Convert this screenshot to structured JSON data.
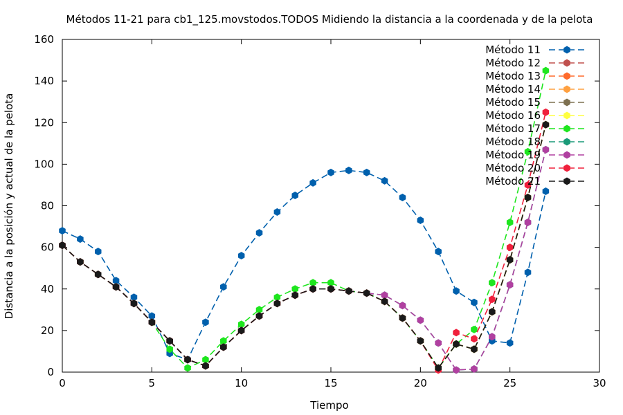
{
  "chart_data": {
    "type": "line",
    "title": "Métodos 11-21 para cb1_125.movstodos.TODOS Midiendo la distancia a la coordenada y de la pelota",
    "xlabel": "Tiempo",
    "ylabel": "Distancia a la posición y actual de la pelota",
    "xlim": [
      0,
      30
    ],
    "ylim": [
      0,
      160
    ],
    "xticks": [
      "0",
      "5",
      "10",
      "15",
      "20",
      "25",
      "30"
    ],
    "yticks": [
      "0",
      "20",
      "40",
      "60",
      "80",
      "100",
      "120",
      "140",
      "160"
    ],
    "grid": false,
    "legend_position": "top-right",
    "series": [
      {
        "name": "Método 11",
        "color": "#0060ad",
        "x": [
          0,
          1,
          2,
          3,
          4,
          5,
          6,
          7,
          8,
          9,
          10,
          11,
          12,
          13,
          14,
          15,
          16,
          17,
          18,
          19,
          20,
          21,
          22,
          23,
          24,
          25,
          26,
          27
        ],
        "y": [
          68,
          64,
          58,
          44,
          36,
          27,
          9,
          6,
          24,
          41,
          56,
          67,
          77,
          85,
          91,
          96,
          97,
          96,
          92,
          84,
          73,
          58,
          39,
          33.5,
          15,
          14,
          48,
          87
        ]
      },
      {
        "name": "Método 12",
        "color": "#c0504d",
        "x": [
          0,
          1,
          2,
          3,
          4,
          5,
          6,
          7,
          8,
          9,
          10,
          11,
          12,
          13,
          14,
          15,
          16,
          17,
          18,
          19,
          20,
          21,
          22,
          23,
          24,
          25,
          26,
          27
        ],
        "y": [
          61,
          53,
          47,
          41,
          33,
          24,
          15,
          6,
          3,
          12,
          20,
          27,
          33,
          37,
          40,
          40,
          39,
          38,
          34,
          26,
          15,
          2,
          13.5,
          11,
          29,
          54,
          84,
          119
        ]
      },
      {
        "name": "Método 13",
        "color": "#ff6a2b",
        "x": [
          0,
          1,
          2,
          3,
          4,
          5,
          6,
          7,
          8,
          9,
          10,
          11,
          12,
          13,
          14,
          15,
          16,
          17,
          18,
          19,
          20,
          21,
          22,
          23,
          24,
          25,
          26,
          27
        ],
        "y": [
          61,
          53,
          47,
          41,
          33,
          24,
          15,
          6,
          3,
          12,
          20,
          27,
          33,
          37,
          40,
          40,
          39,
          38,
          34,
          26,
          15,
          2,
          13.5,
          11,
          29,
          54,
          84,
          119
        ]
      },
      {
        "name": "Método 14",
        "color": "#ffa040",
        "x": [
          0,
          1,
          2,
          3,
          4,
          5,
          6,
          7,
          8,
          9,
          10,
          11,
          12,
          13,
          14,
          15,
          16,
          17,
          18,
          19,
          20,
          21,
          22,
          23,
          24,
          25,
          26,
          27
        ],
        "y": [
          61,
          53,
          47,
          41,
          33,
          24,
          15,
          6,
          3,
          12,
          20,
          27,
          33,
          37,
          40,
          40,
          39,
          38,
          34,
          26,
          15,
          2,
          13.5,
          11,
          29,
          54,
          84,
          119
        ]
      },
      {
        "name": "Método 15",
        "color": "#7d7050",
        "x": [
          0,
          1,
          2,
          3,
          4,
          5,
          6,
          7,
          8,
          9,
          10,
          11,
          12,
          13,
          14,
          15,
          16,
          17,
          18,
          19,
          20,
          21,
          22,
          23,
          24,
          25,
          26,
          27
        ],
        "y": [
          61,
          53,
          47,
          41,
          33,
          24,
          15,
          6,
          3,
          12,
          20,
          27,
          33,
          37,
          40,
          40,
          39,
          38,
          34,
          26,
          15,
          2,
          13.5,
          11,
          29,
          54,
          84,
          119
        ]
      },
      {
        "name": "Método 16",
        "color": "#ffff40",
        "x": [
          0,
          1,
          2,
          3,
          4,
          5,
          6,
          7,
          8,
          9,
          10,
          11,
          12,
          13,
          14,
          15,
          16,
          17,
          18,
          19,
          20,
          21,
          22,
          23,
          24,
          25,
          26,
          27
        ],
        "y": [
          61,
          53,
          47,
          41,
          33,
          24,
          15,
          6,
          3,
          12,
          20,
          27,
          33,
          37,
          40,
          40,
          39,
          38,
          34,
          26,
          15,
          2,
          13.5,
          11,
          29,
          54,
          84,
          119
        ]
      },
      {
        "name": "Método 17",
        "color": "#1ee61e",
        "x": [
          0,
          1,
          2,
          3,
          4,
          5,
          6,
          7,
          8,
          9,
          10,
          11,
          12,
          13,
          14,
          15,
          16,
          17,
          18,
          19,
          20,
          21,
          22,
          23,
          24,
          25,
          26,
          27
        ],
        "y": [
          61,
          53,
          47,
          41,
          33,
          24,
          11,
          2,
          6,
          15,
          23,
          30,
          36,
          40,
          43,
          43,
          39,
          38,
          34,
          26,
          15,
          2,
          13.5,
          20.5,
          43,
          72,
          106,
          145
        ]
      },
      {
        "name": "Método 18",
        "color": "#1a9a78",
        "x": [
          0,
          1,
          2,
          3,
          4,
          5,
          6,
          7,
          8,
          9,
          10,
          11,
          12,
          13,
          14,
          15,
          16,
          17,
          18,
          19,
          20,
          21,
          22,
          23,
          24,
          25,
          26,
          27
        ],
        "y": [
          61,
          53,
          47,
          41,
          33,
          24,
          15,
          6,
          3,
          12,
          20,
          27,
          33,
          37,
          40,
          40,
          39,
          38,
          37,
          32,
          25,
          14,
          1,
          1.5,
          17,
          42,
          72,
          107
        ]
      },
      {
        "name": "Método 19",
        "color": "#b040a0",
        "x": [
          0,
          1,
          2,
          3,
          4,
          5,
          6,
          7,
          8,
          9,
          10,
          11,
          12,
          13,
          14,
          15,
          16,
          17,
          18,
          19,
          20,
          21,
          22,
          23,
          24,
          25,
          26,
          27
        ],
        "y": [
          61,
          53,
          47,
          41,
          33,
          24,
          15,
          6,
          3,
          12,
          20,
          27,
          33,
          37,
          40,
          40,
          39,
          38,
          37,
          32,
          25,
          14,
          1,
          1.5,
          17,
          42,
          72,
          107
        ]
      },
      {
        "name": "Método 20",
        "color": "#f0203c",
        "x": [
          0,
          1,
          2,
          3,
          4,
          5,
          6,
          7,
          8,
          9,
          10,
          11,
          12,
          13,
          14,
          15,
          16,
          17,
          18,
          19,
          20,
          21,
          22,
          23,
          24,
          25,
          26,
          27
        ],
        "y": [
          61,
          53,
          47,
          41,
          33,
          24,
          15,
          6,
          3,
          12,
          20,
          27,
          33,
          37,
          40,
          40,
          39,
          38,
          34,
          26,
          15,
          1,
          19,
          16,
          35,
          60,
          90,
          125
        ]
      },
      {
        "name": "Método 21",
        "color": "#1a1a1a",
        "x": [
          0,
          1,
          2,
          3,
          4,
          5,
          6,
          7,
          8,
          9,
          10,
          11,
          12,
          13,
          14,
          15,
          16,
          17,
          18,
          19,
          20,
          21,
          22,
          23,
          24,
          25,
          26,
          27
        ],
        "y": [
          61,
          53,
          47,
          41,
          33,
          24,
          15,
          6,
          3,
          12,
          20,
          27,
          33,
          37,
          40,
          40,
          39,
          38,
          34,
          26,
          15,
          2,
          13.5,
          11,
          29,
          54,
          84,
          119
        ]
      }
    ]
  }
}
